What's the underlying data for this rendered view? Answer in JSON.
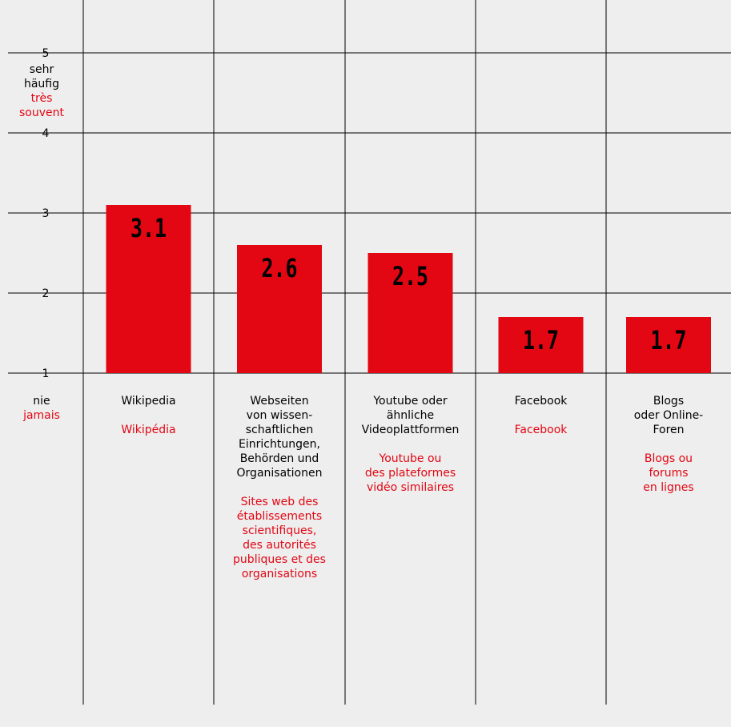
{
  "chart_data": {
    "type": "bar",
    "categories": [
      "Wikipedia",
      "Webseiten von wissenschaftlichen Einrichtungen, Behörden und Organisationen",
      "Youtube oder ähnliche Videoplattformen",
      "Facebook",
      "Blogs oder Online-Foren"
    ],
    "values": [
      3.1,
      2.6,
      2.5,
      1.7,
      1.7
    ],
    "value_labels": [
      "3.1",
      "2.6",
      "2.5",
      "1.7",
      "1.7"
    ],
    "ylim": [
      1,
      5
    ],
    "yticks": [
      "1",
      "2",
      "3",
      "4",
      "5"
    ],
    "grid": true,
    "bar_color": "#e30613",
    "label_color_fr": "#e30613",
    "y_axis": {
      "top_de": "sehr\nhäufig",
      "top_fr": "très\nsouvent",
      "bottom_de": "nie",
      "bottom_fr": "jamais"
    },
    "columns": [
      {
        "de": "Wikipedia",
        "fr": "Wikipédia"
      },
      {
        "de": "Webseiten\nvon wissen-\nschaftlichen\nEinrichtungen,\nBehörden und\nOrganisationen",
        "fr": "Sites web des\nétablissements\nscientifiques,\ndes autorités\npubliques et des\norganisations"
      },
      {
        "de": "Youtube oder\nähnliche\nVideoplattformen",
        "fr": "Youtube ou\ndes plateformes\nvidéo similaires"
      },
      {
        "de": "Facebook",
        "fr": "Facebook"
      },
      {
        "de": "Blogs\noder Online-\nForen",
        "fr": "Blogs ou\nforums\nen lignes"
      }
    ]
  }
}
